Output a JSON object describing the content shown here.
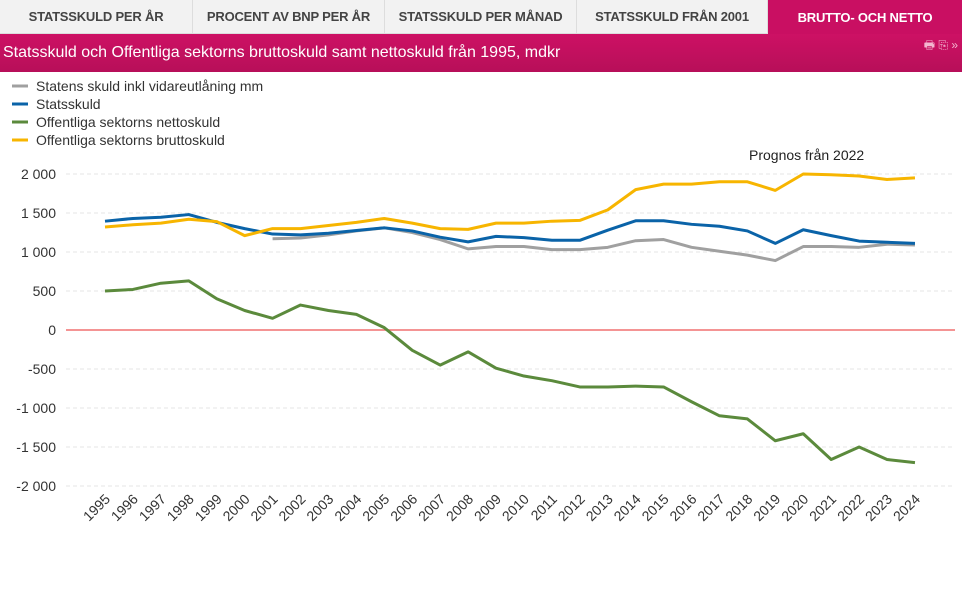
{
  "tabs": [
    "STATSSKULD PER ÅR",
    "PROCENT AV BNP PER ÅR",
    "STATSSKULD PER MÅNAD",
    "STATSSKULD FRÅN 2001",
    "BRUTTO- OCH NETTO"
  ],
  "header": {
    "title": "Statsskuld och Offentliga sektorns bruttoskuld samt nettoskuld från 1995, mdkr",
    "icons": [
      "print-icon",
      "export-icon",
      "more-icon"
    ]
  },
  "chart_data": {
    "type": "line",
    "title": "Statsskuld och Offentliga sektorns bruttoskuld samt nettoskuld från 1995, mdkr",
    "annotation": "Prognos från 2022",
    "x": [
      1995,
      1996,
      1997,
      1998,
      1999,
      2000,
      2001,
      2002,
      2003,
      2004,
      2005,
      2006,
      2007,
      2008,
      2009,
      2010,
      2011,
      2012,
      2013,
      2014,
      2015,
      2016,
      2017,
      2018,
      2019,
      2020,
      2021,
      2022,
      2023,
      2024
    ],
    "ylim": [
      -2000,
      2000
    ],
    "yticks": [
      2000,
      1500,
      1000,
      500,
      0,
      -500,
      -1000,
      -1500,
      -2000
    ],
    "ytick_labels": [
      "2 000",
      "1 500",
      "1 000",
      "500",
      "0",
      "-500",
      "-1 000",
      "-1 500",
      "-2 000"
    ],
    "legend_position": "top-left",
    "series": [
      {
        "name": "Statens skuld inkl vidareutlåning mm",
        "color": "#a0a0a0",
        "values": [
          null,
          null,
          null,
          null,
          null,
          null,
          1170,
          1180,
          1220,
          1270,
          1310,
          1250,
          1160,
          1040,
          1070,
          1070,
          1030,
          1030,
          1060,
          1145,
          1160,
          1060,
          1010,
          960,
          890,
          1070,
          1070,
          1060,
          1100,
          1090
        ]
      },
      {
        "name": "Statsskuld",
        "color": "#0a63a8",
        "values": [
          1395,
          1430,
          1445,
          1480,
          1380,
          1300,
          1230,
          1220,
          1240,
          1275,
          1310,
          1270,
          1190,
          1130,
          1200,
          1185,
          1150,
          1150,
          1280,
          1400,
          1400,
          1355,
          1330,
          1270,
          1110,
          1285,
          1210,
          1140,
          1125,
          1110
        ]
      },
      {
        "name": "Offentliga sektorns nettoskuld",
        "color": "#5b8a3c",
        "values": [
          500,
          520,
          600,
          630,
          400,
          250,
          150,
          320,
          250,
          200,
          30,
          -260,
          -450,
          -280,
          -490,
          -590,
          -650,
          -730,
          -730,
          -720,
          -730,
          -920,
          -1100,
          -1140,
          -1420,
          -1330,
          -1660,
          -1500,
          -1660,
          -1700
        ]
      },
      {
        "name": "Offentliga sektorns bruttoskuld",
        "color": "#f7b500",
        "values": [
          1320,
          1350,
          1370,
          1420,
          1390,
          1210,
          1300,
          1300,
          1340,
          1380,
          1430,
          1370,
          1300,
          1290,
          1370,
          1370,
          1395,
          1405,
          1540,
          1800,
          1870,
          1870,
          1900,
          1900,
          1790,
          2000,
          1990,
          1975,
          1930,
          1950
        ]
      }
    ],
    "zero_line_color": "#f07070"
  }
}
